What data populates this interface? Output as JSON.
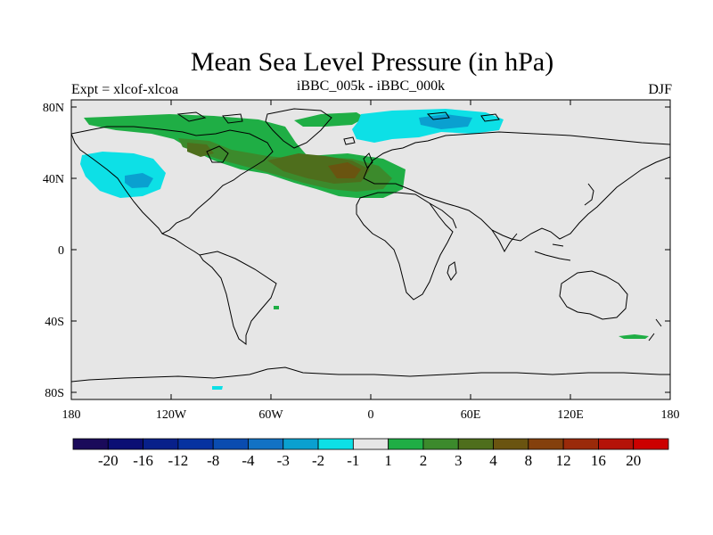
{
  "header": {
    "title": "Mean Sea Level Pressure (in hPa)",
    "experiment": "Expt = xlcof-xlcoa",
    "comparison": "iBBC_005k - iBBC_000k",
    "season": "DJF"
  },
  "map": {
    "lat_ticks": [
      "80N",
      "40N",
      "0",
      "40S",
      "80S"
    ],
    "lat_values": [
      80,
      40,
      0,
      -40,
      -80
    ],
    "lon_ticks": [
      "180",
      "120W",
      "60W",
      "0",
      "60E",
      "120E",
      "180"
    ],
    "lon_values": [
      -180,
      -120,
      -60,
      0,
      60,
      120,
      180
    ],
    "land_color": "#e6e6e6",
    "coast_color": "#000000"
  },
  "colorbar": {
    "colors": [
      "#1a0a5a",
      "#0b0f74",
      "#08208a",
      "#0632a0",
      "#0a4cb0",
      "#1272c4",
      "#0aa0d0",
      "#0de0e6",
      "#e6e6e6",
      "#1fae45",
      "#3c8a2c",
      "#4e6e1c",
      "#6a5410",
      "#84400c",
      "#9a2a0a",
      "#b41208",
      "#cc0000"
    ],
    "labels": [
      "-20",
      "-16",
      "-12",
      "-8",
      "-4",
      "-3",
      "-2",
      "-1",
      "1",
      "2",
      "3",
      "4",
      "8",
      "12",
      "16",
      "20"
    ]
  }
}
